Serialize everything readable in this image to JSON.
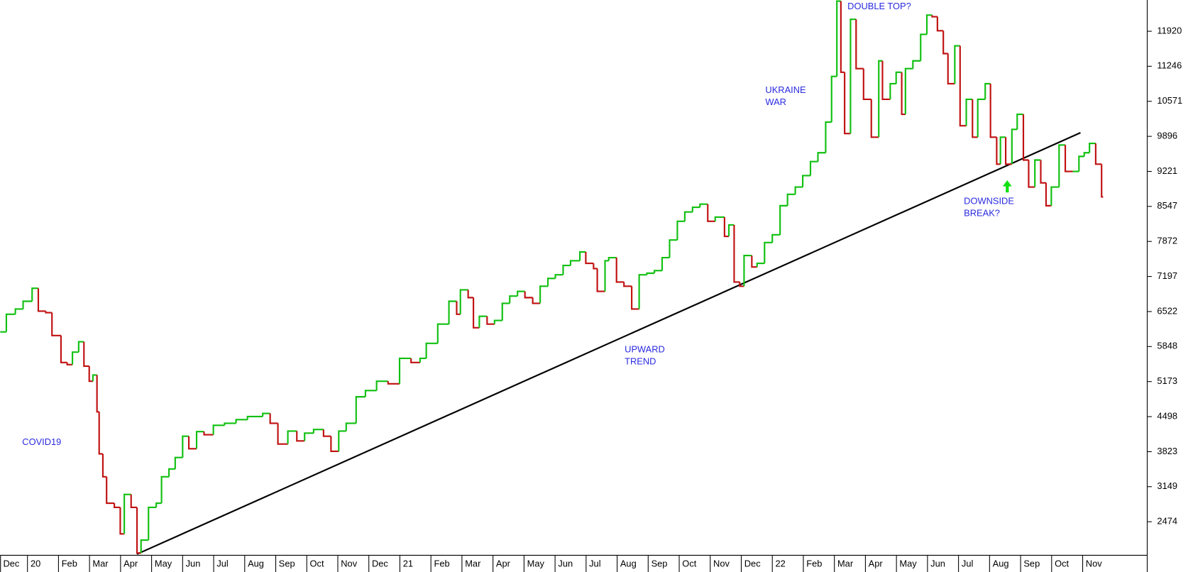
{
  "chart_data": {
    "type": "step",
    "up_color": "#10c010",
    "down_color": "#c01010",
    "xlim": [
      0.12,
      37.08
    ],
    "ylim": [
      1828,
      12522
    ],
    "xticks": [
      {
        "value": 0,
        "label": "Dec"
      },
      {
        "value": 1,
        "label": "20"
      },
      {
        "value": 2,
        "label": "Feb"
      },
      {
        "value": 3,
        "label": "Mar"
      },
      {
        "value": 4,
        "label": "Apr"
      },
      {
        "value": 5,
        "label": "May"
      },
      {
        "value": 6,
        "label": "Jun"
      },
      {
        "value": 7,
        "label": "Jul"
      },
      {
        "value": 8,
        "label": "Aug"
      },
      {
        "value": 9,
        "label": "Sep"
      },
      {
        "value": 10,
        "label": "Oct"
      },
      {
        "value": 11,
        "label": "Nov"
      },
      {
        "value": 12,
        "label": "Dec"
      },
      {
        "value": 13,
        "label": "21"
      },
      {
        "value": 14,
        "label": "Feb"
      },
      {
        "value": 15,
        "label": "Mar"
      },
      {
        "value": 16,
        "label": "Apr"
      },
      {
        "value": 17,
        "label": "May"
      },
      {
        "value": 18,
        "label": "Jun"
      },
      {
        "value": 19,
        "label": "Jul"
      },
      {
        "value": 20,
        "label": "Aug"
      },
      {
        "value": 21,
        "label": "Sep"
      },
      {
        "value": 22,
        "label": "Oct"
      },
      {
        "value": 23,
        "label": "Nov"
      },
      {
        "value": 24,
        "label": "Dec"
      },
      {
        "value": 25,
        "label": "22"
      },
      {
        "value": 26,
        "label": "Feb"
      },
      {
        "value": 27,
        "label": "Mar"
      },
      {
        "value": 28,
        "label": "Apr"
      },
      {
        "value": 29,
        "label": "May"
      },
      {
        "value": 30,
        "label": "Jun"
      },
      {
        "value": 31,
        "label": "Jul"
      },
      {
        "value": 32,
        "label": "Aug"
      },
      {
        "value": 33,
        "label": "Sep"
      },
      {
        "value": 34,
        "label": "Oct"
      },
      {
        "value": 35,
        "label": "Nov"
      }
    ],
    "yticks": [
      2474,
      3149,
      3823,
      4498,
      5173,
      5848,
      6522,
      7197,
      7872,
      8547,
      9221,
      9896,
      10571,
      11246,
      11920
    ],
    "x": [
      0.12,
      0.32,
      0.61,
      0.86,
      1.15,
      1.35,
      1.59,
      1.79,
      2.08,
      2.28,
      2.45,
      2.65,
      2.82,
      2.99,
      3.11,
      3.24,
      3.31,
      3.43,
      3.55,
      3.8,
      3.99,
      4.12,
      4.34,
      4.53,
      4.66,
      4.9,
      5.15,
      5.32,
      5.56,
      5.76,
      6.0,
      6.2,
      6.45,
      6.69,
      6.99,
      7.35,
      7.72,
      8.09,
      8.58,
      8.82,
      9.07,
      9.39,
      9.68,
      9.93,
      10.22,
      10.54,
      10.78,
      11.03,
      11.27,
      11.59,
      11.89,
      12.25,
      12.62,
      12.99,
      13.36,
      13.65,
      13.85,
      14.22,
      14.58,
      14.83,
      14.95,
      15.2,
      15.37,
      15.56,
      15.81,
      16.05,
      16.3,
      16.54,
      16.79,
      17.03,
      17.28,
      17.52,
      17.77,
      18.01,
      18.26,
      18.5,
      18.8,
      18.99,
      19.24,
      19.36,
      19.61,
      19.73,
      19.98,
      20.22,
      20.47,
      20.71,
      20.96,
      21.2,
      21.45,
      21.69,
      21.94,
      22.18,
      22.43,
      22.67,
      22.92,
      23.16,
      23.46,
      23.6,
      23.77,
      23.95,
      24.09,
      24.34,
      24.51,
      24.75,
      25.0,
      25.25,
      25.49,
      25.74,
      25.98,
      26.23,
      26.47,
      26.72,
      26.91,
      27.08,
      27.21,
      27.33,
      27.52,
      27.7,
      27.94,
      28.19,
      28.43,
      28.55,
      28.8,
      28.99,
      29.17,
      29.29,
      29.53,
      29.78,
      29.98,
      30.15,
      30.32,
      30.51,
      30.66,
      30.88,
      31.05,
      31.25,
      31.45,
      31.62,
      31.86,
      32.03,
      32.23,
      32.35,
      32.52,
      32.72,
      32.89,
      33.09,
      33.26,
      33.46,
      33.65,
      33.82,
      33.99,
      34.24,
      34.44,
      34.68,
      34.88,
      35.05,
      35.22,
      35.42,
      35.61
    ],
    "values": [
      6130,
      6470,
      6570,
      6720,
      6970,
      6530,
      6500,
      6060,
      5540,
      5500,
      5740,
      5940,
      5470,
      5180,
      5300,
      4590,
      3780,
      3340,
      2830,
      2750,
      2240,
      3000,
      2750,
      1870,
      2120,
      2750,
      2830,
      3340,
      3490,
      3710,
      4120,
      3880,
      4210,
      4150,
      4330,
      4370,
      4440,
      4500,
      4560,
      4370,
      3970,
      4220,
      4030,
      4180,
      4250,
      4120,
      3830,
      4220,
      4370,
      4880,
      5000,
      5180,
      5130,
      5620,
      5540,
      5620,
      5910,
      6280,
      6720,
      6470,
      6940,
      6790,
      6210,
      6430,
      6280,
      6350,
      6680,
      6820,
      6910,
      6790,
      6680,
      7010,
      7160,
      7230,
      7410,
      7500,
      7670,
      7450,
      7350,
      6910,
      7500,
      7560,
      7090,
      7010,
      6570,
      7230,
      7260,
      7310,
      7560,
      7900,
      8260,
      8440,
      8530,
      8590,
      8260,
      8340,
      7970,
      8190,
      7090,
      7010,
      7600,
      7380,
      7450,
      7850,
      8000,
      8560,
      8780,
      8920,
      9140,
      9410,
      9580,
      10170,
      11050,
      12500,
      11130,
      9950,
      12150,
      11200,
      10610,
      9880,
      11350,
      10610,
      10910,
      11130,
      10320,
      11200,
      11350,
      11860,
      12230,
      12200,
      11930,
      11490,
      10910,
      11640,
      10100,
      10610,
      9880,
      10610,
      10910,
      9880,
      9360,
      9880,
      9360,
      10030,
      10320,
      9440,
      8920,
      9440,
      9000,
      8560,
      8920,
      9730,
      9220,
      9220,
      9510,
      9580,
      9760,
      9360,
      8730
    ],
    "trendline": {
      "x": [
        4.53,
        34.93
      ],
      "values": [
        1850,
        9966
      ]
    },
    "annotations": [
      {
        "lines": [
          "COVID19"
        ]
      },
      {
        "lines": [
          "UPWARD",
          "TREND"
        ]
      },
      {
        "lines": [
          "UKRAINE",
          "WAR"
        ]
      },
      {
        "lines": [
          "DOUBLE TOP?"
        ]
      },
      {
        "lines": [
          "DOWNSIDE",
          "BREAK?"
        ]
      }
    ]
  }
}
